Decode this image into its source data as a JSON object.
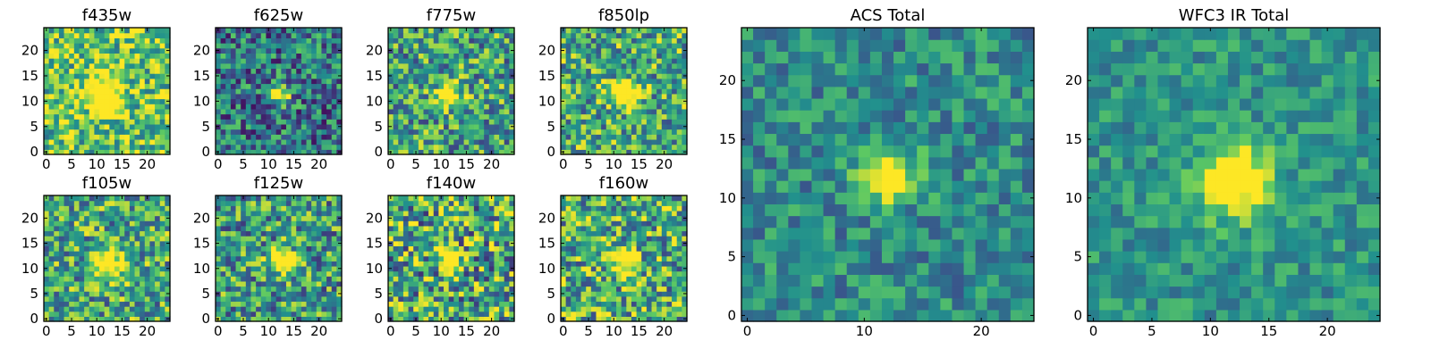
{
  "chart_data": [
    {
      "type": "heatmap",
      "title": "f435w",
      "xticks": [
        0,
        5,
        10,
        15,
        20
      ],
      "yticks": [
        0,
        5,
        10,
        15,
        20
      ],
      "grid_size": 25,
      "blob_center": [
        11.5,
        11.5
      ],
      "blob_radius": 3.5,
      "background_level": 0.72,
      "noise_level": 0.35
    },
    {
      "type": "heatmap",
      "title": "f625w",
      "xticks": [
        0,
        5,
        10,
        15,
        20
      ],
      "yticks": [
        0,
        5,
        10,
        15,
        20
      ],
      "grid_size": 25,
      "blob_center": [
        12.0,
        11.5
      ],
      "blob_radius": 2.0,
      "background_level": 0.4,
      "noise_level": 0.35
    },
    {
      "type": "heatmap",
      "title": "f775w",
      "xticks": [
        0,
        5,
        10,
        15,
        20
      ],
      "yticks": [
        0,
        5,
        10,
        15,
        20
      ],
      "grid_size": 25,
      "blob_center": [
        11.5,
        11.5
      ],
      "blob_radius": 2.2,
      "background_level": 0.58,
      "noise_level": 0.38
    },
    {
      "type": "heatmap",
      "title": "f850lp",
      "xticks": [
        0,
        5,
        10,
        15,
        20
      ],
      "yticks": [
        0,
        5,
        10,
        15,
        20
      ],
      "grid_size": 25,
      "blob_center": [
        12.0,
        11.5
      ],
      "blob_radius": 2.5,
      "background_level": 0.62,
      "noise_level": 0.38
    },
    {
      "type": "heatmap",
      "title": "f105w",
      "xticks": [
        0,
        5,
        10,
        15,
        20
      ],
      "yticks": [
        0,
        5,
        10,
        15,
        20
      ],
      "grid_size": 25,
      "blob_center": [
        12.0,
        11.0
      ],
      "blob_radius": 3.0,
      "background_level": 0.6,
      "noise_level": 0.38
    },
    {
      "type": "heatmap",
      "title": "f125w",
      "xticks": [
        0,
        5,
        10,
        15,
        20
      ],
      "yticks": [
        0,
        5,
        10,
        15,
        20
      ],
      "grid_size": 25,
      "blob_center": [
        12.5,
        11.5
      ],
      "blob_radius": 2.5,
      "background_level": 0.55,
      "noise_level": 0.38
    },
    {
      "type": "heatmap",
      "title": "f140w",
      "xticks": [
        0,
        5,
        10,
        15,
        20
      ],
      "yticks": [
        0,
        5,
        10,
        15,
        20
      ],
      "grid_size": 25,
      "blob_center": [
        12.0,
        11.5
      ],
      "blob_radius": 2.0,
      "background_level": 0.6,
      "noise_level": 0.45
    },
    {
      "type": "heatmap",
      "title": "f160w",
      "xticks": [
        0,
        5,
        10,
        15,
        20
      ],
      "yticks": [
        0,
        5,
        10,
        15,
        20
      ],
      "grid_size": 25,
      "blob_center": [
        12.0,
        11.5
      ],
      "blob_radius": 2.5,
      "background_level": 0.62,
      "noise_level": 0.4
    },
    {
      "type": "heatmap",
      "title": "ACS Total",
      "xticks": [
        0,
        10,
        20
      ],
      "yticks": [
        0,
        5,
        10,
        15,
        20
      ],
      "grid_size": 25,
      "blob_center": [
        12.0,
        12.0
      ],
      "blob_radius": 2.3,
      "background_level": 0.48,
      "noise_level": 0.22
    },
    {
      "type": "heatmap",
      "title": "WFC3 IR Total",
      "xticks": [
        0,
        5,
        10,
        15,
        20
      ],
      "yticks": [
        0,
        5,
        10,
        15,
        20
      ],
      "grid_size": 25,
      "blob_center": [
        12.0,
        11.5
      ],
      "blob_radius": 3.0,
      "background_level": 0.52,
      "noise_level": 0.18
    }
  ],
  "colormap": [
    "#440154",
    "#3b528b",
    "#21908d",
    "#5dc963",
    "#fde725"
  ]
}
